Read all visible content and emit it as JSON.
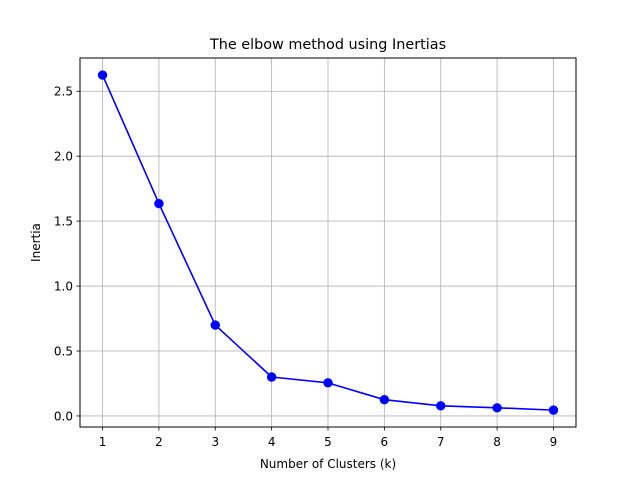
{
  "chart_data": {
    "type": "line",
    "title": "The elbow method using Inertias",
    "xlabel": "Number of Clusters (k)",
    "ylabel": "Inertia",
    "x": [
      1,
      2,
      3,
      4,
      5,
      6,
      7,
      8,
      9
    ],
    "series": [
      {
        "values": [
          2.625,
          1.635,
          0.7,
          0.3,
          0.255,
          0.125,
          0.078,
          0.063,
          0.045
        ],
        "color": "#0000ff",
        "marker": "circle"
      }
    ],
    "xticks": [
      1,
      2,
      3,
      4,
      5,
      6,
      7,
      8,
      9
    ],
    "yticks": [
      0.0,
      0.5,
      1.0,
      1.5,
      2.0,
      2.5
    ],
    "ytick_labels": [
      "0.0",
      "0.5",
      "1.0",
      "1.5",
      "2.0",
      "2.5"
    ],
    "xlim": [
      0.6,
      9.4
    ],
    "ylim": [
      -0.085,
      2.756
    ],
    "grid": true,
    "grid_color": "#b0b0b0"
  }
}
